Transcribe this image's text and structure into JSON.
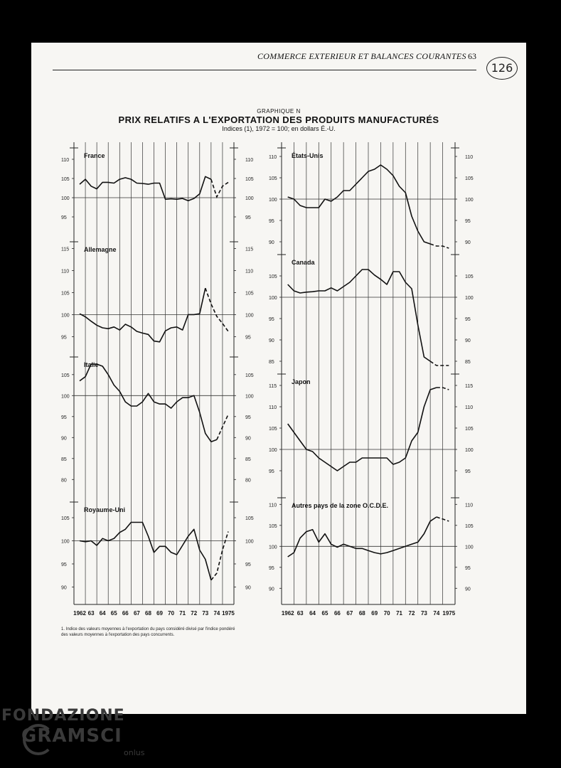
{
  "header": {
    "running_title": "COMMERCE EXTERIEUR ET BALANCES COURANTES",
    "page_number": "63",
    "stamp": "126"
  },
  "figure": {
    "label": "GRAPHIQUE N",
    "title": "PRIX RELATIFS A L'EXPORTATION DES PRODUITS MANUFACTURÉS",
    "subtitle": "Indices (1), 1972 = 100; en dollars É.-U.",
    "footnote_line1": "1. Indice des valeurs moyennes à l'exportation du pays considéré divisé par l'indice pondéré",
    "footnote_line2": "des valeurs moyennes à l'exportation des pays concurrents."
  },
  "chart_data": [
    {
      "type": "line",
      "title": "France",
      "x": [
        1962,
        1962.5,
        1963,
        1963.5,
        1964,
        1964.5,
        1965,
        1965.5,
        1966,
        1966.5,
        1967,
        1967.5,
        1968,
        1968.5,
        1969,
        1969.5,
        1970,
        1970.5,
        1971,
        1971.5,
        1972,
        1972.5,
        1973,
        1973.5,
        1974,
        1974.5,
        1975
      ],
      "values": [
        103.5,
        104.8,
        103,
        102.3,
        104,
        104,
        103.8,
        104.8,
        105.2,
        104.8,
        103.8,
        103.7,
        103.5,
        103.8,
        103.8,
        99.6,
        99.7,
        99.6,
        99.8,
        99.2,
        99.8,
        101,
        105.5,
        104.8,
        100.2,
        103,
        104
      ],
      "projected_from": 1973.5,
      "yticks": [
        95,
        100,
        105,
        110
      ],
      "ylim": [
        90,
        114
      ]
    },
    {
      "type": "line",
      "title": "Allemagne",
      "x": [
        1962,
        1962.5,
        1963,
        1963.5,
        1964,
        1964.5,
        1965,
        1965.5,
        1966,
        1966.5,
        1967,
        1967.5,
        1968,
        1968.5,
        1969,
        1969.5,
        1970,
        1970.5,
        1971,
        1971.5,
        1972,
        1972.5,
        1973,
        1973.5,
        1974,
        1974.5,
        1975
      ],
      "values": [
        100.2,
        99.5,
        98.5,
        97.6,
        97,
        96.8,
        97.2,
        96.5,
        97.8,
        97.2,
        96.2,
        95.8,
        95.5,
        94,
        93.8,
        96.3,
        97,
        97.2,
        96.5,
        100,
        100,
        100.2,
        106,
        102.4,
        99.6,
        98,
        96.2
      ],
      "projected_from": 1973,
      "yticks": [
        95,
        100,
        105,
        110,
        115
      ],
      "ylim": [
        92,
        117
      ]
    },
    {
      "type": "line",
      "title": "Italie",
      "x": [
        1962,
        1962.5,
        1963,
        1963.5,
        1964,
        1964.5,
        1965,
        1965.5,
        1966,
        1966.5,
        1967,
        1967.5,
        1968,
        1968.5,
        1969,
        1969.5,
        1970,
        1970.5,
        1971,
        1971.5,
        1972,
        1972.5,
        1973,
        1973.5,
        1974,
        1974.5,
        1975
      ],
      "values": [
        103.5,
        104.5,
        107.5,
        107.5,
        107,
        105,
        102.5,
        101,
        98.5,
        97.5,
        97.5,
        98.5,
        100.5,
        98.5,
        98,
        98,
        97,
        98.5,
        99.5,
        99.5,
        100,
        96,
        91,
        89,
        89.5,
        92.5,
        95.5
      ],
      "projected_from": 1974,
      "yticks": [
        80,
        85,
        90,
        95,
        100,
        105
      ],
      "ylim": [
        77,
        109
      ]
    },
    {
      "type": "line",
      "title": "Royaume-Uni",
      "x": [
        1962,
        1962.5,
        1963,
        1963.5,
        1964,
        1964.5,
        1965,
        1965.5,
        1966,
        1966.5,
        1967,
        1967.5,
        1968,
        1968.5,
        1969,
        1969.5,
        1970,
        1970.5,
        1971,
        1971.5,
        1972,
        1972.5,
        1973,
        1973.5,
        1974,
        1974.5,
        1975
      ],
      "values": [
        100,
        99.8,
        100,
        99,
        100.5,
        100,
        100.5,
        101.8,
        102.5,
        104,
        104,
        104,
        101,
        97.5,
        98.8,
        98.8,
        97.5,
        97,
        99,
        101,
        102.5,
        98,
        96,
        91.5,
        93,
        98,
        102
      ],
      "projected_from": 1973.5,
      "yticks": [
        90,
        95,
        100,
        105
      ],
      "ylim": [
        87,
        108
      ]
    },
    {
      "type": "line",
      "title": "États-Unis",
      "x": [
        1962,
        1962.5,
        1963,
        1963.5,
        1964,
        1964.5,
        1965,
        1965.5,
        1966,
        1966.5,
        1967,
        1967.5,
        1968,
        1968.5,
        1969,
        1969.5,
        1970,
        1970.5,
        1971,
        1971.5,
        1972,
        1972.5,
        1973,
        1973.5,
        1974,
        1974.5,
        1975
      ],
      "values": [
        100.5,
        100,
        98.5,
        98,
        98,
        98,
        100,
        99.5,
        100.5,
        102,
        102,
        103.5,
        105,
        106.5,
        107,
        108,
        107,
        105.5,
        103,
        101.5,
        96,
        92.5,
        90,
        89.5,
        89,
        89,
        88.5
      ],
      "projected_from": 1973.5,
      "yticks": [
        90,
        95,
        100,
        105,
        110
      ],
      "ylim": [
        87,
        115
      ]
    },
    {
      "type": "line",
      "title": "Canada",
      "x": [
        1962,
        1962.5,
        1963,
        1963.5,
        1964,
        1964.5,
        1965,
        1965.5,
        1966,
        1966.5,
        1967,
        1967.5,
        1968,
        1968.5,
        1969,
        1969.5,
        1970,
        1970.5,
        1971,
        1971.5,
        1972,
        1972.5,
        1973,
        1973.5,
        1974,
        1974.5,
        1975
      ],
      "values": [
        103,
        101.5,
        101,
        101.2,
        101.3,
        101.5,
        101.5,
        102.2,
        101.5,
        102.5,
        103.5,
        105,
        106.5,
        106.5,
        105.2,
        104.2,
        103,
        106,
        106,
        103.5,
        102,
        93.5,
        86,
        85,
        84,
        84,
        84
      ],
      "projected_from": 1973.5,
      "yticks": [
        85,
        90,
        95,
        100,
        105
      ],
      "ylim": [
        82,
        108
      ]
    },
    {
      "type": "line",
      "title": "Japon",
      "x": [
        1962,
        1962.5,
        1963,
        1963.5,
        1964,
        1964.5,
        1965,
        1965.5,
        1966,
        1966.5,
        1967,
        1967.5,
        1968,
        1968.5,
        1969,
        1969.5,
        1970,
        1970.5,
        1971,
        1971.5,
        1972,
        1972.5,
        1973,
        1973.5,
        1974,
        1974.5,
        1975
      ],
      "values": [
        106,
        104,
        102,
        100,
        99.5,
        98,
        97,
        96,
        95,
        96,
        97,
        97,
        98,
        98,
        98,
        98,
        98,
        96.5,
        97,
        98,
        102,
        104,
        110,
        114,
        114.5,
        114.5,
        114
      ],
      "projected_from": 1974,
      "yticks": [
        95,
        100,
        105,
        110,
        115
      ],
      "ylim": [
        91,
        117
      ]
    },
    {
      "type": "line",
      "title": "Autres pays de la zone O.C.D.E.",
      "x": [
        1962,
        1962.5,
        1963,
        1963.5,
        1964,
        1964.5,
        1965,
        1965.5,
        1966,
        1966.5,
        1967,
        1967.5,
        1968,
        1968.5,
        1969,
        1969.5,
        1970,
        1970.5,
        1971,
        1971.5,
        1972,
        1972.5,
        1973,
        1973.5,
        1974,
        1974.5,
        1975
      ],
      "values": [
        97.5,
        98.5,
        102,
        103.5,
        104,
        101,
        103,
        100.5,
        99.8,
        100.5,
        100,
        99.5,
        99.5,
        99,
        98.5,
        98.2,
        98.5,
        99,
        99.5,
        100,
        100.5,
        101,
        103,
        106,
        107,
        106.5,
        106
      ],
      "projected_from": 1974,
      "yticks": [
        90,
        95,
        100,
        105,
        110
      ],
      "ylim": [
        87,
        112
      ]
    }
  ],
  "x_axis": {
    "tick_labels": [
      "1962",
      "63",
      "64",
      "65",
      "66",
      "67",
      "68",
      "69",
      "70",
      "71",
      "72",
      "73",
      "74",
      "1975"
    ]
  },
  "logo": {
    "line1": "FONDAZIONE",
    "line2": "GRAMSCI",
    "line3": "onlus"
  }
}
